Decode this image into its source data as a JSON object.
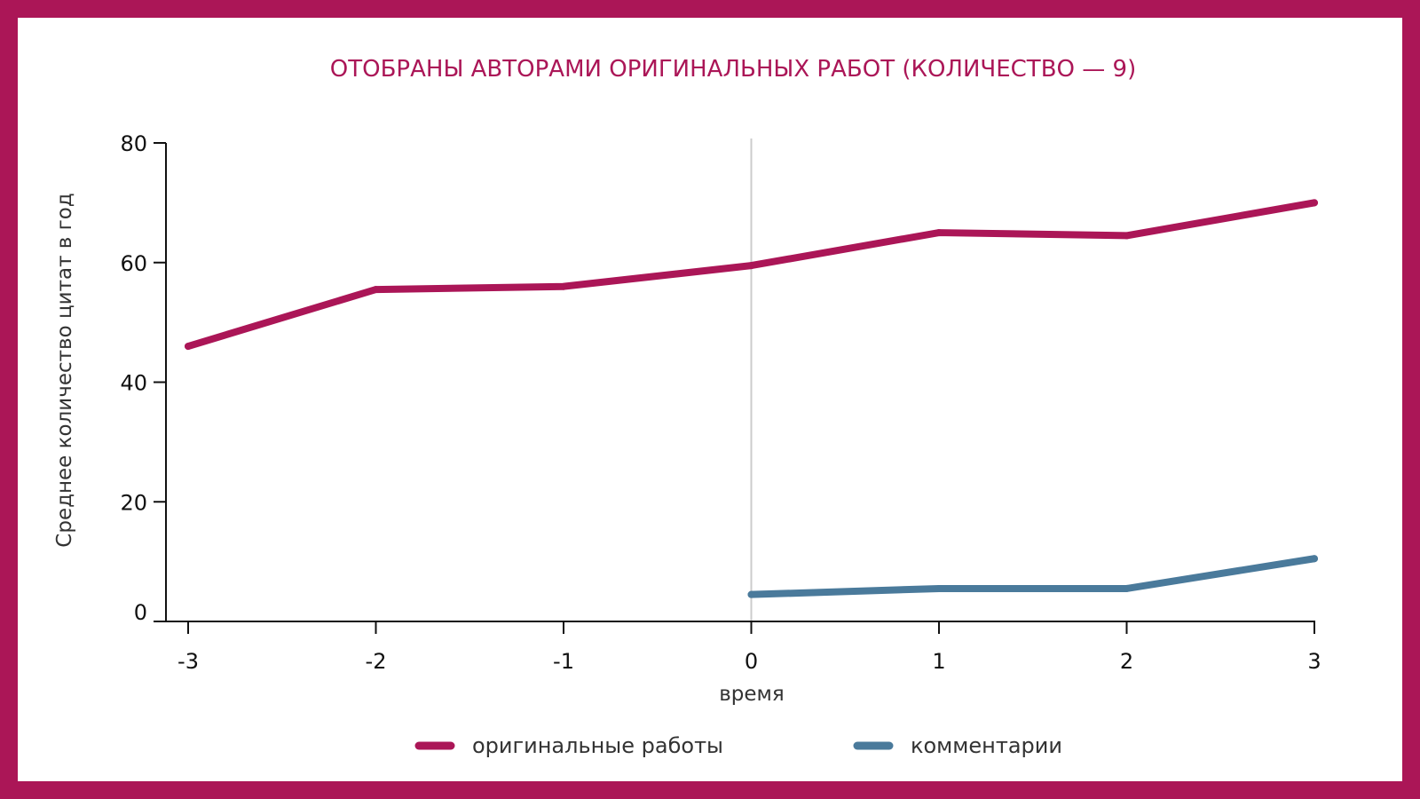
{
  "chart_data": {
    "type": "line",
    "title": "ОТОБРАНЫ АВТОРАМИ ОРИГИНАЛЬНЫХ РАБОТ (КОЛИЧЕСТВО — 9)",
    "xlabel": "время",
    "ylabel": "Среднее количество цитат в год",
    "x": [
      -3,
      -2,
      -1,
      0,
      1,
      2,
      3
    ],
    "x_tick_labels": [
      "-3",
      "-2",
      "-1",
      "0",
      "1",
      "2",
      "3"
    ],
    "y_ticks": [
      0,
      20,
      40,
      60,
      80
    ],
    "y_tick_labels": [
      "0",
      "20",
      "40",
      "60",
      "80"
    ],
    "xlim": [
      -3,
      3
    ],
    "ylim": [
      0,
      80
    ],
    "grid": false,
    "reference_line_x": 0,
    "legend_placement": "bottom",
    "series": [
      {
        "name": "оригинальные работы",
        "color": "#ab1657",
        "x": [
          -3,
          -2,
          -1,
          0,
          1,
          2,
          3
        ],
        "values": [
          46,
          55.5,
          56,
          59.5,
          65,
          64.5,
          70
        ]
      },
      {
        "name": "комментарии",
        "color": "#4a7a9b",
        "x": [
          0,
          1,
          2,
          3
        ],
        "values": [
          4.5,
          5.5,
          5.5,
          10.5
        ]
      }
    ]
  },
  "colors": {
    "frame": "#ab1657",
    "axis": "#111111",
    "reference_line": "#cccccc"
  }
}
